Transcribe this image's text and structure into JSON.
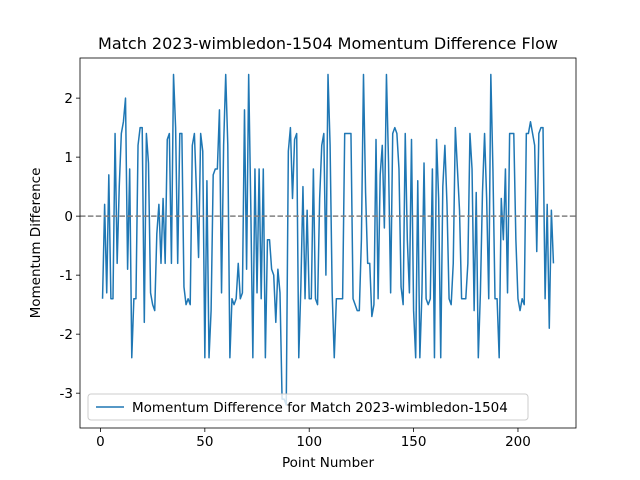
{
  "chart_data": {
    "type": "line",
    "title": "Match 2023-wimbledon-1504 Momentum Difference Flow",
    "x_label": "Point Number",
    "y_label": "Momentum Difference",
    "x": [
      1,
      2,
      3,
      4,
      5,
      6,
      7,
      8,
      9,
      10,
      11,
      12,
      13,
      14,
      15,
      16,
      17,
      18,
      19,
      20,
      21,
      22,
      23,
      24,
      25,
      26,
      27,
      28,
      29,
      30,
      31,
      32,
      33,
      34,
      35,
      36,
      37,
      38,
      39,
      40,
      41,
      42,
      43,
      44,
      45,
      46,
      47,
      48,
      49,
      50,
      51,
      52,
      53,
      54,
      55,
      56,
      57,
      58,
      59,
      60,
      61,
      62,
      63,
      64,
      65,
      66,
      67,
      68,
      69,
      70,
      71,
      72,
      73,
      74,
      75,
      76,
      77,
      78,
      79,
      80,
      81,
      82,
      83,
      84,
      85,
      86,
      87,
      88,
      89,
      90,
      91,
      92,
      93,
      94,
      95,
      96,
      97,
      98,
      99,
      100,
      101,
      102,
      103,
      104,
      105,
      106,
      107,
      108,
      109,
      110,
      111,
      112,
      113,
      114,
      115,
      116,
      117,
      118,
      119,
      120,
      121,
      122,
      123,
      124,
      125,
      126,
      127,
      128,
      129,
      130,
      131,
      132,
      133,
      134,
      135,
      136,
      137,
      138,
      139,
      140,
      141,
      142,
      143,
      144,
      145,
      146,
      147,
      148,
      149,
      150,
      151,
      152,
      153,
      154,
      155,
      156,
      157,
      158,
      159,
      160,
      161,
      162,
      163,
      164,
      165,
      166,
      167,
      168,
      169,
      170,
      171,
      172,
      173,
      174,
      175,
      176,
      177,
      178,
      179,
      180,
      181,
      182,
      183,
      184,
      185,
      186,
      187,
      188,
      189,
      190,
      191,
      192,
      193,
      194,
      195,
      196,
      197,
      198,
      199,
      200,
      201,
      202,
      203,
      204,
      205,
      206,
      207,
      208,
      209,
      210,
      211,
      212,
      213,
      214,
      215,
      216,
      217
    ],
    "series": [
      {
        "name": "Momentum Difference for Match 2023-wimbledon-1504",
        "color": "#1f77b4",
        "values": [
          -1.4,
          0.2,
          -1.3,
          0.7,
          -1.4,
          -1.4,
          1.4,
          -0.8,
          0.5,
          1.4,
          1.6,
          2.0,
          -0.9,
          0.8,
          -2.4,
          -1.4,
          -1.4,
          1.2,
          1.5,
          1.5,
          -1.8,
          1.4,
          0.9,
          -1.3,
          -1.5,
          -1.6,
          -0.3,
          0.2,
          -0.8,
          0.3,
          -0.8,
          1.3,
          1.4,
          -0.8,
          2.4,
          1.5,
          -0.8,
          1.4,
          1.4,
          -1.2,
          -1.5,
          -1.4,
          -1.5,
          1.2,
          1.4,
          0.4,
          -0.7,
          1.4,
          1.1,
          -2.4,
          0.6,
          -2.4,
          -1.6,
          0.7,
          0.8,
          0.8,
          1.8,
          -1.3,
          1.2,
          2.4,
          1.2,
          -2.4,
          -1.4,
          -1.5,
          -1.4,
          -0.8,
          -1.4,
          -1.3,
          1.8,
          -0.9,
          2.4,
          0.2,
          -2.4,
          0.8,
          -1.3,
          0.8,
          -1.4,
          0.8,
          -2.4,
          -0.4,
          -0.4,
          -0.9,
          -1.0,
          -1.8,
          -0.9,
          -1.3,
          -3.1,
          -3.1,
          -3.2,
          1.1,
          1.5,
          0.3,
          1.3,
          1.4,
          -2.4,
          -1.2,
          0.5,
          -1.4,
          0.1,
          -1.4,
          -1.4,
          0.8,
          -1.4,
          -1.5,
          0.3,
          1.2,
          1.4,
          -1.0,
          2.4,
          1.2,
          -1.3,
          -2.4,
          -1.4,
          -1.4,
          -1.4,
          -1.4,
          1.4,
          1.4,
          1.4,
          1.4,
          -1.4,
          -1.5,
          -1.6,
          -1.6,
          -0.4,
          2.4,
          0.4,
          -0.8,
          -0.8,
          -1.7,
          -1.5,
          1.3,
          -1.4,
          0.7,
          1.2,
          -0.2,
          2.4,
          0.9,
          -1.3,
          1.4,
          1.5,
          1.4,
          0.8,
          -1.2,
          -1.5,
          1.4,
          -0.4,
          -1.3,
          1.3,
          -1.6,
          -2.4,
          0.6,
          -2.4,
          -1.3,
          0.9,
          -1.4,
          -1.5,
          -1.4,
          0.8,
          -2.4,
          1.3,
          0.3,
          -2.4,
          0.5,
          1.2,
          0.2,
          -1.4,
          -1.5,
          -0.8,
          1.5,
          0.8,
          0.1,
          -1.4,
          -1.4,
          -1.4,
          -0.8,
          1.4,
          0.8,
          -1.6,
          0.4,
          -2.4,
          -1.3,
          0.4,
          1.4,
          0.3,
          -1.4,
          2.4,
          0.8,
          -1.4,
          -1.4,
          -2.4,
          0.3,
          -0.4,
          0.8,
          -1.3,
          1.4,
          1.4,
          1.4,
          -0.4,
          -1.4,
          -1.6,
          -1.4,
          -1.5,
          1.4,
          1.4,
          1.6,
          1.4,
          1.2,
          -0.6,
          1.4,
          1.5,
          1.5,
          -1.4,
          0.2,
          -1.9,
          0.1,
          -0.8
        ]
      }
    ],
    "reference_line": {
      "y": 0,
      "color": "#808080",
      "dashed": true
    },
    "xlim": [
      -9.8,
      227.8
    ],
    "ylim": [
      -3.59,
      2.68
    ],
    "xticks": [
      0,
      50,
      100,
      150,
      200
    ],
    "yticks": [
      -3,
      -2,
      -1,
      0,
      1,
      2
    ],
    "legend_position": "lower left"
  }
}
